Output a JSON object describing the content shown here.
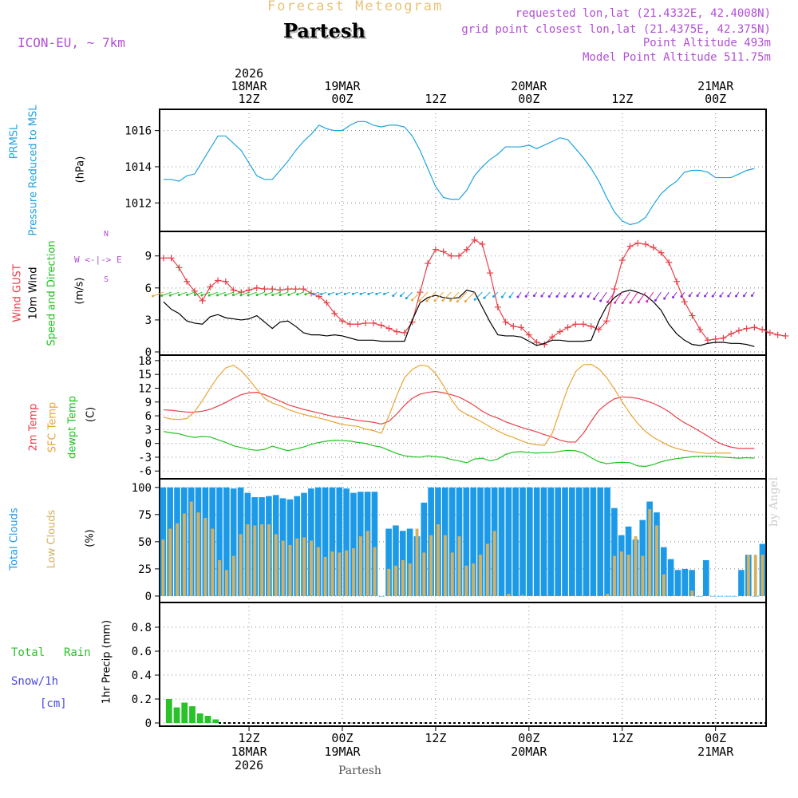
{
  "header": {
    "title": "Forecast Meteogram",
    "place": "Partesh",
    "model": "ICON-EU, ~ 7km",
    "requested": "requested lon,lat (21.4332E, 42.4008N)",
    "grid_point": "grid point closest lon,lat (21.4375E, 42.375N)",
    "point_altitude": "Point Altitude 493m",
    "model_altitude": "Model Point Altitude 511.75m"
  },
  "footer": {
    "place": "Partesh",
    "credit": "by Angel"
  },
  "colors": {
    "pressure": "#1fa3e0",
    "gust": "#e8404a",
    "wind": "#000000",
    "t2m": "#e8404a",
    "sfc": "#e8a53a",
    "dewpt": "#22c222",
    "total_cloud": "#1c9ae8",
    "low_cloud": "#d4b062",
    "rain": "#29c229",
    "snow": "#4848e0",
    "purple": "#b24fd6"
  },
  "time_axis": {
    "top_ticks": [
      {
        "hour": 12,
        "lines": [
          "2026",
          "18MAR",
          "12Z"
        ]
      },
      {
        "hour": 24,
        "lines": [
          "19MAR",
          "00Z"
        ]
      },
      {
        "hour": 36,
        "lines": [
          "12Z"
        ]
      },
      {
        "hour": 48,
        "lines": [
          "20MAR",
          "00Z"
        ]
      },
      {
        "hour": 60,
        "lines": [
          "12Z"
        ]
      },
      {
        "hour": 72,
        "lines": [
          "21MAR",
          "00Z"
        ]
      }
    ],
    "bottom_ticks": [
      {
        "hour": 12,
        "lines": [
          "12Z",
          "18MAR",
          "2026"
        ]
      },
      {
        "hour": 24,
        "lines": [
          "00Z",
          "19MAR"
        ]
      },
      {
        "hour": 36,
        "lines": [
          "12Z"
        ]
      },
      {
        "hour": 48,
        "lines": [
          "00Z",
          "20MAR"
        ]
      },
      {
        "hour": 60,
        "lines": [
          "12Z"
        ]
      },
      {
        "hour": 72,
        "lines": [
          "00Z",
          "21MAR"
        ]
      }
    ]
  },
  "labels": {
    "p1": {
      "a": "PRMSL",
      "b": "Pressure Reduced to MSL",
      "unit": "(hPa)"
    },
    "p2": {
      "a": "Wind GUST",
      "b": "10m Wind",
      "c": "Speed and Direction",
      "unit": "(m/s)",
      "compass_n": "N",
      "compass_s": "S",
      "compass_ew": "W <-|-> E"
    },
    "p3": {
      "a": "2m Temp",
      "b": "SFC Temp",
      "c": "dewpt Temp",
      "unit": "(C)"
    },
    "p4": {
      "a": "Total Clouds",
      "b": "Low Clouds",
      "unit": "(%)"
    },
    "p5": {
      "a": "Total",
      "a2": "Rain",
      "b": "Snow/1h",
      "c": "[cm]",
      "unit": "1hr Precip (mm)"
    }
  },
  "chart_data": [
    {
      "type": "line",
      "title": "PRMSL Pressure Reduced to MSL",
      "ylabel": "hPa",
      "ylim": [
        1010.6,
        1017.0
      ],
      "yticks": [
        1012,
        1014,
        1016
      ],
      "xlim": [
        1,
        78
      ],
      "x": [
        1,
        2,
        3,
        4,
        5,
        6,
        7,
        8,
        9,
        10,
        11,
        12,
        13,
        14,
        15,
        16,
        17,
        18,
        19,
        20,
        21,
        22,
        23,
        24,
        25,
        26,
        27,
        28,
        29,
        30,
        31,
        32,
        33,
        34,
        35,
        36,
        37,
        38,
        39,
        40,
        41,
        42,
        43,
        44,
        45,
        46,
        47,
        48,
        49,
        50,
        51,
        52,
        53,
        54,
        55,
        56,
        57,
        58,
        59,
        60,
        61,
        62,
        63,
        64,
        65,
        66,
        67,
        68,
        69,
        70,
        71,
        72,
        73,
        74,
        75,
        76,
        77
      ],
      "values": [
        1013.3,
        1013.3,
        1013.2,
        1013.5,
        1013.6,
        1014.3,
        1015.0,
        1015.7,
        1015.7,
        1015.3,
        1014.9,
        1014.2,
        1013.5,
        1013.3,
        1013.3,
        1013.8,
        1014.3,
        1014.9,
        1015.4,
        1015.8,
        1016.3,
        1016.1,
        1016.0,
        1016.0,
        1016.3,
        1016.5,
        1016.5,
        1016.3,
        1016.2,
        1016.3,
        1016.3,
        1016.2,
        1015.7,
        1014.9,
        1013.9,
        1012.9,
        1012.3,
        1012.2,
        1012.2,
        1012.7,
        1013.5,
        1014.0,
        1014.4,
        1014.7,
        1015.1,
        1015.1,
        1015.1,
        1015.2,
        1015.0,
        1015.2,
        1015.4,
        1015.6,
        1015.5,
        1015.0,
        1014.5,
        1013.9,
        1013.2,
        1012.3,
        1011.5,
        1011.0,
        1010.8,
        1010.9,
        1011.2,
        1011.9,
        1012.5,
        1012.9,
        1013.2,
        1013.7,
        1013.8,
        1013.8,
        1013.7,
        1013.4,
        1013.4,
        1013.4,
        1013.6,
        1013.8,
        1013.9
      ]
    },
    {
      "type": "line",
      "title": "Wind GUST / 10m Wind Speed and Direction",
      "ylabel": "m/s",
      "ylim": [
        0,
        11
      ],
      "yticks": [
        0,
        3,
        6,
        9
      ],
      "xlim": [
        1,
        78
      ],
      "series": [
        {
          "name": "Wind GUST",
          "values": [
            8.8,
            8.8,
            7.9,
            6.6,
            5.7,
            4.8,
            6.1,
            6.7,
            6.6,
            5.8,
            5.6,
            5.8,
            6.0,
            5.9,
            5.9,
            5.8,
            5.9,
            5.9,
            5.9,
            5.5,
            5.2,
            4.6,
            3.6,
            2.9,
            2.6,
            2.6,
            2.7,
            2.7,
            2.5,
            2.2,
            1.9,
            1.8,
            2.8,
            5.6,
            8.3,
            9.6,
            9.4,
            9.0,
            9.0,
            9.6,
            10.5,
            10.1,
            7.4,
            4.2,
            2.8,
            2.4,
            2.3,
            1.6,
            0.9,
            0.7,
            1.4,
            1.9,
            2.3,
            2.6,
            2.6,
            2.4,
            2.1,
            2.9,
            5.9,
            8.6,
            9.9,
            10.2,
            10.1,
            9.8,
            9.3,
            8.4,
            6.6,
            4.7,
            3.4,
            2.1,
            1.1,
            1.2,
            1.3,
            1.7,
            2.0,
            2.2,
            2.3,
            2.1,
            1.8,
            1.6,
            1.5
          ]
        },
        {
          "name": "10m Wind",
          "values": [
            4.7,
            4.0,
            3.6,
            2.9,
            2.7,
            2.6,
            3.3,
            3.5,
            3.2,
            3.1,
            3.0,
            3.1,
            3.4,
            2.8,
            2.2,
            2.8,
            2.9,
            2.4,
            1.8,
            1.6,
            1.6,
            1.5,
            1.6,
            1.5,
            1.3,
            1.1,
            1.1,
            1.1,
            1.0,
            1.0,
            1.0,
            1.0,
            3.0,
            4.6,
            5.1,
            5.3,
            5.1,
            5.0,
            5.1,
            5.8,
            5.6,
            4.2,
            2.8,
            1.6,
            1.5,
            1.5,
            1.4,
            1.0,
            0.6,
            0.8,
            1.1,
            1.1,
            1.0,
            1.0,
            1.0,
            1.1,
            2.9,
            4.3,
            5.1,
            5.6,
            5.8,
            5.6,
            5.3,
            4.7,
            3.9,
            2.6,
            1.7,
            1.1,
            0.7,
            0.6,
            0.8,
            0.9,
            0.9,
            0.8,
            0.8,
            0.7,
            0.5
          ]
        }
      ]
    },
    {
      "type": "line",
      "title": "2m Temp / SFC Temp / dewpt Temp",
      "ylabel": "C",
      "ylim": [
        -7,
        18.5
      ],
      "yticks": [
        -6,
        -3,
        0,
        3,
        6,
        9,
        12,
        15,
        18
      ],
      "xlim": [
        1,
        78
      ],
      "series": [
        {
          "name": "2m Temp",
          "values": [
            7.3,
            7.2,
            7.0,
            6.8,
            6.8,
            7.0,
            7.4,
            8.1,
            8.9,
            9.8,
            10.6,
            11.0,
            11.1,
            10.6,
            9.9,
            9.2,
            8.4,
            7.9,
            7.4,
            7.0,
            6.6,
            6.2,
            5.8,
            5.6,
            5.3,
            5.0,
            4.8,
            4.6,
            4.2,
            4.8,
            6.4,
            8.3,
            9.8,
            10.7,
            11.1,
            11.3,
            11.0,
            10.6,
            10.1,
            9.2,
            8.2,
            7.0,
            6.1,
            5.5,
            4.7,
            4.1,
            3.5,
            3.0,
            2.5,
            1.9,
            1.4,
            0.7,
            0.3,
            0.3,
            2.2,
            4.8,
            7.2,
            8.6,
            9.7,
            10.1,
            10.0,
            9.8,
            9.3,
            8.7,
            7.9,
            6.9,
            5.6,
            4.5,
            3.6,
            2.6,
            1.6,
            0.5,
            -0.3,
            -0.8,
            -1.1,
            -1.1,
            -1.1
          ]
        },
        {
          "name": "SFC Temp",
          "values": [
            5.7,
            5.3,
            5.2,
            5.4,
            6.9,
            9.3,
            12.0,
            14.5,
            16.4,
            17.0,
            15.8,
            13.9,
            11.8,
            9.8,
            8.8,
            8.2,
            7.4,
            6.8,
            6.3,
            5.9,
            5.5,
            5.1,
            4.6,
            4.1,
            3.9,
            3.7,
            3.1,
            2.8,
            2.2,
            6.0,
            10.4,
            14.3,
            16.1,
            17.0,
            16.8,
            15.2,
            12.6,
            9.6,
            7.3,
            6.3,
            5.5,
            4.6,
            3.6,
            2.7,
            1.9,
            1.3,
            0.6,
            0.0,
            -0.3,
            -0.4,
            2.2,
            7.2,
            12.0,
            15.6,
            17.1,
            17.2,
            16.2,
            14.3,
            11.8,
            9.0,
            6.5,
            4.3,
            2.6,
            1.3,
            0.4,
            -0.5,
            -1.1,
            -1.5,
            -1.8,
            -2.0,
            -2.2,
            -2.1,
            -2.1,
            -2.1
          ]
        },
        {
          "name": "dewpt Temp",
          "values": [
            2.6,
            2.3,
            2.1,
            1.6,
            1.3,
            1.5,
            1.4,
            0.8,
            0.2,
            -0.5,
            -0.9,
            -1.3,
            -1.5,
            -1.3,
            -0.6,
            -1.1,
            -1.6,
            -1.2,
            -0.8,
            -0.2,
            0.2,
            0.5,
            0.7,
            0.6,
            0.5,
            0.2,
            0.0,
            -0.5,
            -0.8,
            -1.5,
            -2.2,
            -2.7,
            -2.9,
            -3.0,
            -2.7,
            -2.9,
            -3.0,
            -3.5,
            -3.8,
            -4.2,
            -3.4,
            -3.2,
            -3.8,
            -3.4,
            -2.4,
            -1.9,
            -1.8,
            -2.0,
            -2.1,
            -2.0,
            -2.0,
            -1.7,
            -1.5,
            -1.6,
            -2.1,
            -3.1,
            -4.0,
            -4.4,
            -4.2,
            -4.1,
            -4.2,
            -4.9,
            -5.0,
            -4.6,
            -4.0,
            -3.6,
            -3.3,
            -3.1,
            -2.9,
            -2.8,
            -2.8,
            -2.9,
            -3.0,
            -3.1,
            -3.2,
            -3.1,
            -3.2
          ]
        }
      ]
    },
    {
      "type": "bar",
      "title": "Total Clouds / Low Clouds",
      "ylabel": "%",
      "ylim": [
        -3,
        105
      ],
      "yticks": [
        0,
        25,
        50,
        75,
        100
      ],
      "xlim": [
        1,
        78
      ],
      "series": [
        {
          "name": "Total Clouds",
          "values": [
            100,
            100,
            100,
            100,
            100,
            100,
            100,
            100,
            100,
            100,
            99,
            100,
            95,
            91,
            91,
            92,
            93,
            90,
            89,
            92,
            95,
            99,
            100,
            100,
            100,
            100,
            99,
            95,
            96,
            96,
            96,
            0,
            62,
            65,
            60,
            62,
            55,
            86,
            100,
            100,
            100,
            100,
            100,
            100,
            100,
            100,
            100,
            100,
            100,
            100,
            100,
            100,
            100,
            100,
            100,
            100,
            100,
            100,
            100,
            100,
            100,
            100,
            100,
            100,
            81,
            56,
            64,
            52,
            70,
            87,
            77,
            45,
            34,
            24,
            25,
            24,
            0,
            33,
            0,
            0,
            0,
            0,
            24,
            38,
            0,
            48
          ]
        },
        {
          "name": "Low Clouds",
          "values": [
            52,
            62,
            67,
            76,
            87,
            77,
            72,
            62,
            33,
            24,
            37,
            57,
            66,
            65,
            66,
            66,
            57,
            51,
            47,
            53,
            54,
            51,
            45,
            36,
            41,
            40,
            42,
            44,
            55,
            60,
            45,
            0,
            25,
            28,
            33,
            30,
            62,
            40,
            56,
            66,
            56,
            40,
            55,
            28,
            30,
            38,
            48,
            60,
            0,
            2,
            0,
            1,
            0,
            0,
            0,
            0,
            0,
            0,
            0,
            0,
            0,
            0,
            0,
            2,
            37,
            41,
            38,
            55,
            37,
            80,
            65,
            20,
            0,
            0,
            0,
            5,
            0,
            0,
            0,
            0,
            0,
            0,
            0,
            38,
            38,
            38,
            38
          ]
        }
      ]
    },
    {
      "type": "bar",
      "title": "1hr Precip",
      "ylabel": "1hr Precip (mm)",
      "ylim": [
        0,
        0.98
      ],
      "yticks": [
        0,
        0.2,
        0.4,
        0.6,
        0.8
      ],
      "xlim": [
        1,
        78
      ],
      "series": [
        {
          "name": "Total Rain",
          "values": [
            0.2,
            0.13,
            0.17,
            0.14,
            0.08,
            0.06,
            0.03
          ]
        },
        {
          "name": "Snow/1h",
          "values": [
            0,
            0,
            0,
            0,
            0,
            0,
            0
          ]
        }
      ]
    }
  ]
}
